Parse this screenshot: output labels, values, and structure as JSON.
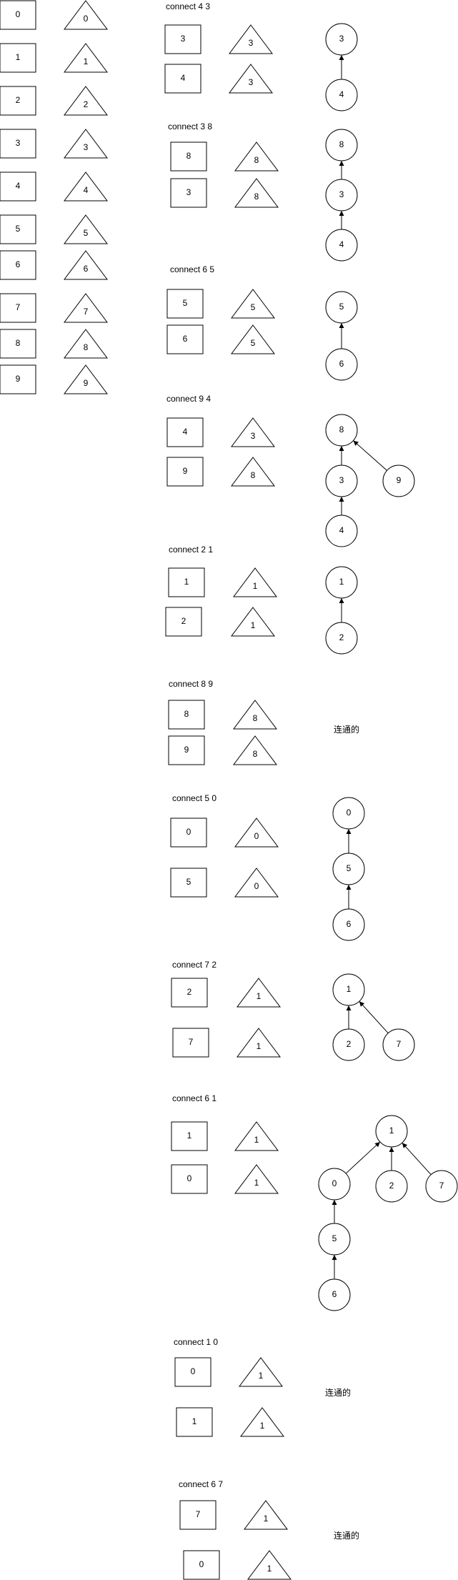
{
  "init": {
    "boxes": [
      "0",
      "1",
      "2",
      "3",
      "4",
      "5",
      "6",
      "7",
      "8",
      "9"
    ],
    "tris": [
      "0",
      "1",
      "2",
      "3",
      "4",
      "5",
      "6",
      "7",
      "8",
      "9"
    ]
  },
  "sections": [
    {
      "caption": "connect 4 3",
      "boxes": [
        {
          "label": "3"
        },
        {
          "label": "4"
        }
      ],
      "tris": [
        {
          "label": "3"
        },
        {
          "label": "3"
        }
      ],
      "nodes": [
        {
          "label": "3"
        },
        {
          "label": "4"
        }
      ],
      "edges": [
        [
          1,
          0
        ]
      ]
    },
    {
      "caption": "connect 3 8",
      "boxes": [
        {
          "label": "8"
        },
        {
          "label": "3"
        }
      ],
      "tris": [
        {
          "label": "8"
        },
        {
          "label": "8"
        }
      ],
      "nodes": [
        {
          "label": "8"
        },
        {
          "label": "3"
        },
        {
          "label": "4"
        }
      ],
      "edges": [
        [
          1,
          0
        ],
        [
          2,
          1
        ]
      ]
    },
    {
      "caption": "connect 6 5",
      "boxes": [
        {
          "label": "5"
        },
        {
          "label": "6"
        }
      ],
      "tris": [
        {
          "label": "5"
        },
        {
          "label": "5"
        }
      ],
      "nodes": [
        {
          "label": "5"
        },
        {
          "label": "6"
        }
      ],
      "edges": [
        [
          1,
          0
        ]
      ]
    },
    {
      "caption": "connect 9 4",
      "boxes": [
        {
          "label": "4"
        },
        {
          "label": "9"
        }
      ],
      "tris": [
        {
          "label": "3"
        },
        {
          "label": "8"
        }
      ],
      "nodes": [
        {
          "label": "8"
        },
        {
          "label": "3"
        },
        {
          "label": "9"
        },
        {
          "label": "4"
        }
      ],
      "edges": [
        [
          1,
          0
        ],
        [
          2,
          0
        ],
        [
          3,
          1
        ]
      ]
    },
    {
      "caption": "connect 2 1",
      "boxes": [
        {
          "label": "1"
        },
        {
          "label": "2"
        }
      ],
      "tris": [
        {
          "label": "1"
        },
        {
          "label": "1"
        }
      ],
      "nodes": [
        {
          "label": "1"
        },
        {
          "label": "2"
        }
      ],
      "edges": [
        [
          1,
          0
        ]
      ]
    },
    {
      "caption": "connect 8 9",
      "boxes": [
        {
          "label": "8"
        },
        {
          "label": "9"
        }
      ],
      "tris": [
        {
          "label": "8"
        },
        {
          "label": "8"
        }
      ],
      "nodes": [],
      "edges": [],
      "note": "连通的"
    },
    {
      "caption": "connect 5 0",
      "boxes": [
        {
          "label": "0"
        },
        {
          "label": "5"
        }
      ],
      "tris": [
        {
          "label": "0"
        },
        {
          "label": "0"
        }
      ],
      "nodes": [
        {
          "label": "0"
        },
        {
          "label": "5"
        },
        {
          "label": "6"
        }
      ],
      "edges": [
        [
          1,
          0
        ],
        [
          2,
          1
        ]
      ]
    },
    {
      "caption": "connect 7 2",
      "boxes": [
        {
          "label": "2"
        },
        {
          "label": "7"
        }
      ],
      "tris": [
        {
          "label": "1"
        },
        {
          "label": "1"
        }
      ],
      "nodes": [
        {
          "label": "1"
        },
        {
          "label": "2"
        },
        {
          "label": "7"
        }
      ],
      "edges": [
        [
          1,
          0
        ],
        [
          2,
          0
        ]
      ]
    },
    {
      "caption": "connect 6 1",
      "boxes": [
        {
          "label": "1"
        },
        {
          "label": "0"
        }
      ],
      "tris": [
        {
          "label": "1"
        },
        {
          "label": "1"
        }
      ],
      "nodes": [
        {
          "label": "1"
        },
        {
          "label": "0"
        },
        {
          "label": "2"
        },
        {
          "label": "7"
        },
        {
          "label": "5"
        },
        {
          "label": "6"
        }
      ],
      "edges": [
        [
          1,
          0
        ],
        [
          2,
          0
        ],
        [
          3,
          0
        ],
        [
          4,
          1
        ],
        [
          5,
          4
        ]
      ]
    },
    {
      "caption": "connect 1 0",
      "boxes": [
        {
          "label": "0"
        },
        {
          "label": "1"
        }
      ],
      "tris": [
        {
          "label": "1"
        },
        {
          "label": "1"
        }
      ],
      "nodes": [],
      "edges": [],
      "note": "连通的"
    },
    {
      "caption": "connect 6 7",
      "boxes": [
        {
          "label": "7"
        },
        {
          "label": "0"
        }
      ],
      "tris": [
        {
          "label": "1"
        },
        {
          "label": "1"
        }
      ],
      "nodes": [],
      "edges": [],
      "note": "连通的"
    }
  ]
}
